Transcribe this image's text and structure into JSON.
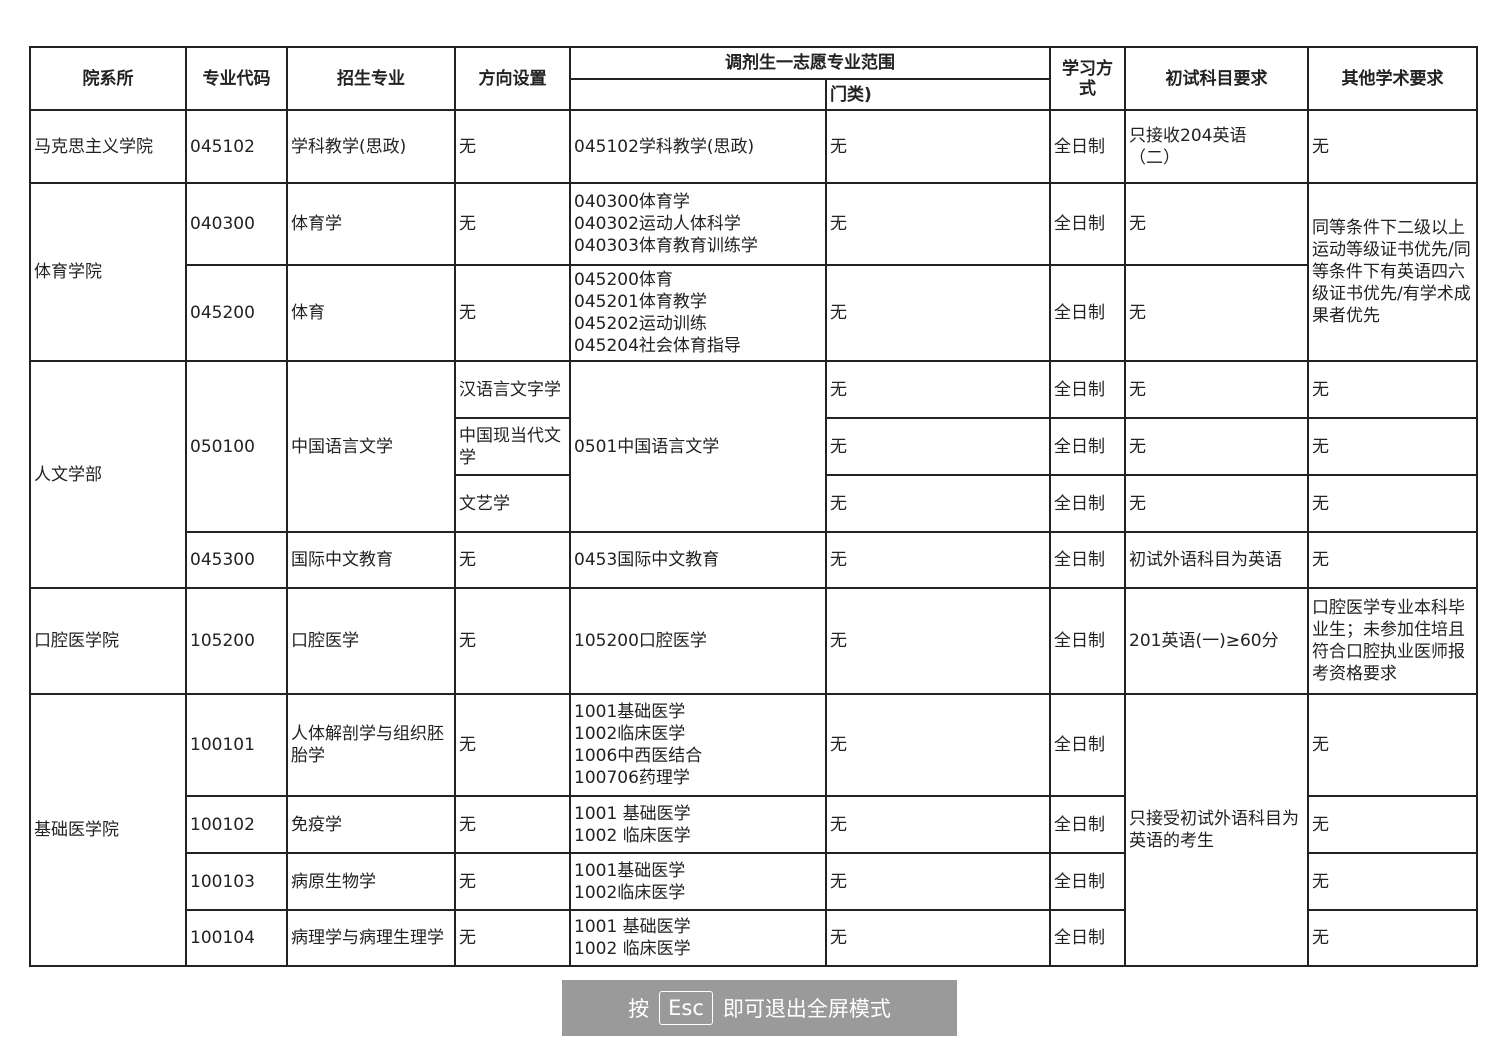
{
  "headers": {
    "college": "院系所",
    "code": "专业代码",
    "major": "招生专业",
    "direction": "方向设置",
    "adjust": "调剂生一志愿专业范围",
    "adjust_sub_right": "门类)",
    "mode": "学习方式",
    "exam": "初试科目要求",
    "other": "其他学术要求"
  },
  "overlay": {
    "press": "按",
    "key": "Esc",
    "text": "即可退出全屏模式"
  },
  "rows": [
    [
      {
        "t": "马克思主义学院"
      },
      {
        "t": "045102"
      },
      {
        "t": "学科教学(思政)"
      },
      {
        "t": "无"
      },
      {
        "t": "045102学科教学(思政)"
      },
      {
        "t": "无"
      },
      {
        "t": "全日制"
      },
      {
        "t": "只接收204英语\n（二）"
      },
      {
        "t": "无"
      }
    ],
    [
      {
        "t": "体育学院",
        "rs": 2
      },
      {
        "t": "040300"
      },
      {
        "t": "体育学"
      },
      {
        "t": "无"
      },
      {
        "t": "040300体育学\n040302运动人体科学\n040303体育教育训练学"
      },
      {
        "t": "无"
      },
      {
        "t": "全日制"
      },
      {
        "t": "无"
      },
      {
        "t": "同等条件下二级以上运动等级证书优先/同等条件下有英语四六级证书优先/有学术成果者优先",
        "rs": 2
      }
    ],
    [
      {
        "t": "045200"
      },
      {
        "t": "体育"
      },
      {
        "t": "无"
      },
      {
        "t": "045200体育\n045201体育教学\n045202运动训练\n045204社会体育指导"
      },
      {
        "t": "无"
      },
      {
        "t": "全日制"
      },
      {
        "t": "无"
      }
    ],
    [
      {
        "t": "人文学部",
        "rs": 4
      },
      {
        "t": "050100",
        "rs": 3
      },
      {
        "t": "中国语言文学",
        "rs": 3
      },
      {
        "t": "汉语言文字学"
      },
      {
        "t": "0501中国语言文学",
        "rs": 3
      },
      {
        "t": "无"
      },
      {
        "t": "全日制"
      },
      {
        "t": "无"
      },
      {
        "t": "无"
      }
    ],
    [
      {
        "t": "中国现当代文学"
      },
      {
        "t": "无"
      },
      {
        "t": "全日制"
      },
      {
        "t": "无"
      },
      {
        "t": "无"
      }
    ],
    [
      {
        "t": "文艺学"
      },
      {
        "t": "无"
      },
      {
        "t": "全日制"
      },
      {
        "t": "无"
      },
      {
        "t": "无"
      }
    ],
    [
      {
        "t": "045300"
      },
      {
        "t": "国际中文教育"
      },
      {
        "t": "无"
      },
      {
        "t": "0453国际中文教育"
      },
      {
        "t": "无"
      },
      {
        "t": "全日制"
      },
      {
        "t": "初试外语科目为英语"
      },
      {
        "t": "无"
      }
    ],
    [
      {
        "t": "口腔医学院"
      },
      {
        "t": "105200"
      },
      {
        "t": "口腔医学"
      },
      {
        "t": "无"
      },
      {
        "t": "105200口腔医学"
      },
      {
        "t": "无"
      },
      {
        "t": "全日制"
      },
      {
        "t": "201英语(一)≥60分"
      },
      {
        "t": "口腔医学专业本科毕业生；未参加住培且符合口腔执业医师报考资格要求"
      }
    ],
    [
      {
        "t": "基础医学院",
        "rs": 4
      },
      {
        "t": "100101"
      },
      {
        "t": "人体解剖学与组织胚胎学"
      },
      {
        "t": "无"
      },
      {
        "t": "1001基础医学\n1002临床医学\n1006中西医结合\n100706药理学"
      },
      {
        "t": "无"
      },
      {
        "t": "全日制"
      },
      {
        "t": "只接受初试外语科目为英语的考生",
        "rs": 4
      },
      {
        "t": "无"
      }
    ],
    [
      {
        "t": "100102"
      },
      {
        "t": "免疫学"
      },
      {
        "t": "无"
      },
      {
        "t": "1001 基础医学\n1002 临床医学"
      },
      {
        "t": "无"
      },
      {
        "t": "全日制"
      },
      {
        "t": "无"
      }
    ],
    [
      {
        "t": "100103"
      },
      {
        "t": "病原生物学"
      },
      {
        "t": "无"
      },
      {
        "t": "1001基础医学\n1002临床医学"
      },
      {
        "t": "无"
      },
      {
        "t": "全日制"
      },
      {
        "t": "无"
      }
    ],
    [
      {
        "t": "100104"
      },
      {
        "t": "病理学与病理生理学"
      },
      {
        "t": "无"
      },
      {
        "t": "1001 基础医学\n1002 临床医学"
      },
      {
        "t": "无"
      },
      {
        "t": "全日制"
      },
      {
        "t": "无"
      }
    ]
  ]
}
